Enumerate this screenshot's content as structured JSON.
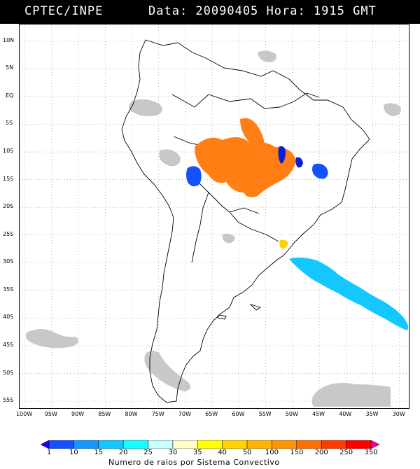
{
  "header": {
    "left": "CPTEC/INPE",
    "right": "Data: 20090405 Hora: 1915 GMT"
  },
  "map": {
    "lat_labels": [
      "10N",
      "5N",
      "EQ",
      "5S",
      "10S",
      "15S",
      "20S",
      "25S",
      "30S",
      "35S",
      "40S",
      "45S",
      "50S",
      "55S"
    ],
    "lat_values": [
      10,
      5,
      0,
      -5,
      -10,
      -15,
      -20,
      -25,
      -30,
      -35,
      -40,
      -45,
      -50,
      -55
    ],
    "lon_labels": [
      "100W",
      "95W",
      "90W",
      "85W",
      "80W",
      "75W",
      "70W",
      "65W",
      "60W",
      "55W",
      "50W",
      "45W",
      "40W",
      "35W",
      "30W"
    ],
    "lon_values": [
      -100,
      -95,
      -90,
      -85,
      -80,
      -75,
      -70,
      -65,
      -60,
      -55,
      -50,
      -45,
      -40,
      -35,
      -30
    ],
    "lon_range": [
      -101,
      -28
    ],
    "lat_range": [
      13,
      -56.5
    ],
    "grid": "dotted",
    "colors": {
      "coast": "#000000",
      "cloud": "#c8c8c8",
      "orange": "#ff7f14",
      "blue": "#1450ff",
      "dark_blue": "#0a1ed2",
      "cyan": "#14c8ff",
      "yellow": "#ffd200"
    }
  },
  "colorbar": {
    "labels": [
      "1",
      "10",
      "15",
      "20",
      "25",
      "30",
      "35",
      "40",
      "50",
      "100",
      "150",
      "200",
      "250",
      "350"
    ],
    "colors": [
      "#1400ff",
      "#1450ff",
      "#1496ff",
      "#14c8ff",
      "#14ffff",
      "#c8ffff",
      "#ffffc8",
      "#ffff00",
      "#ffd200",
      "#ffb400",
      "#ff9600",
      "#ff6e00",
      "#ff3c00",
      "#ff0000",
      "#ff0096"
    ],
    "title": "Numero de raios por Sistema Convectivo"
  }
}
